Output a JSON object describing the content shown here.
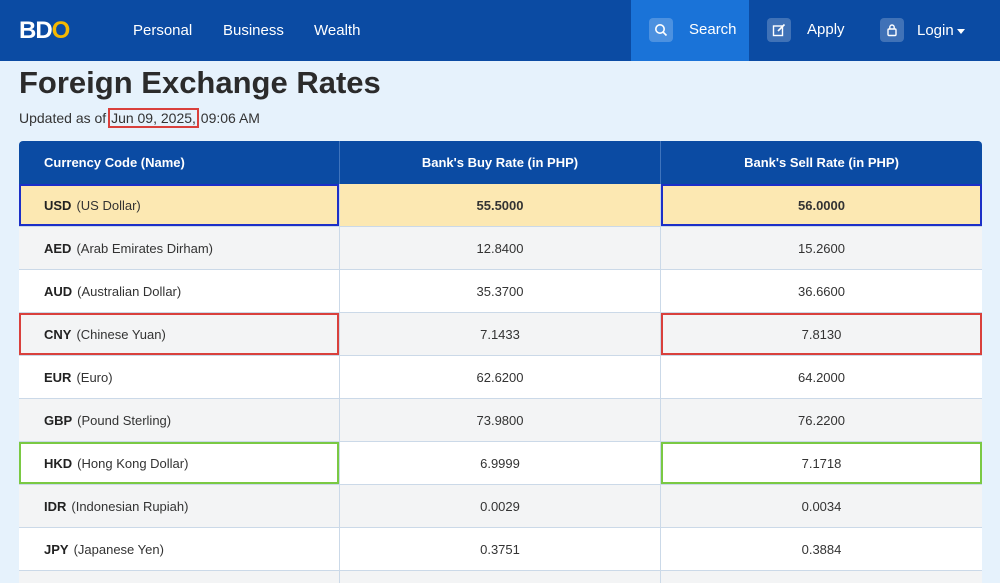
{
  "nav": {
    "logo_left": "BD",
    "logo_right": "O",
    "links": [
      "Personal",
      "Business",
      "Wealth"
    ],
    "search_label": "Search",
    "apply_label": "Apply",
    "login_label": "Login"
  },
  "page": {
    "title": "Foreign Exchange Rates",
    "updated_prefix": "Updated as of ",
    "updated_date": "Jun 09, 2025,",
    "updated_time": " 09:06 AM"
  },
  "table": {
    "headers": [
      "Currency Code (Name)",
      "Bank's Buy Rate (in PHP)",
      "Bank's Sell Rate (in PHP)"
    ],
    "rows": [
      {
        "code": "USD",
        "name": "(US Dollar)",
        "buy": "55.5000",
        "sell": "56.0000"
      },
      {
        "code": "AED",
        "name": "(Arab Emirates Dirham)",
        "buy": "12.8400",
        "sell": "15.2600"
      },
      {
        "code": "AUD",
        "name": "(Australian Dollar)",
        "buy": "35.3700",
        "sell": "36.6600"
      },
      {
        "code": "CNY",
        "name": "(Chinese Yuan)",
        "buy": "7.1433",
        "sell": "7.8130"
      },
      {
        "code": "EUR",
        "name": "(Euro)",
        "buy": "62.6200",
        "sell": "64.2000"
      },
      {
        "code": "GBP",
        "name": "(Pound Sterling)",
        "buy": "73.9800",
        "sell": "76.2200"
      },
      {
        "code": "HKD",
        "name": "(Hong Kong Dollar)",
        "buy": "6.9999",
        "sell": "7.1718"
      },
      {
        "code": "IDR",
        "name": "(Indonesian Rupiah)",
        "buy": "0.0029",
        "sell": "0.0034"
      },
      {
        "code": "JPY",
        "name": "(Japanese Yen)",
        "buy": "0.3751",
        "sell": "0.3884"
      }
    ]
  },
  "colors": {
    "nav_bg": "#0b4ba3",
    "search_bg": "#1a73d8",
    "page_bg": "#e6f2fc",
    "usd_row_bg": "#fce8b2",
    "highlight_blue": "#1c2fc7",
    "highlight_red": "#d9403c",
    "highlight_green": "#7ac943"
  }
}
